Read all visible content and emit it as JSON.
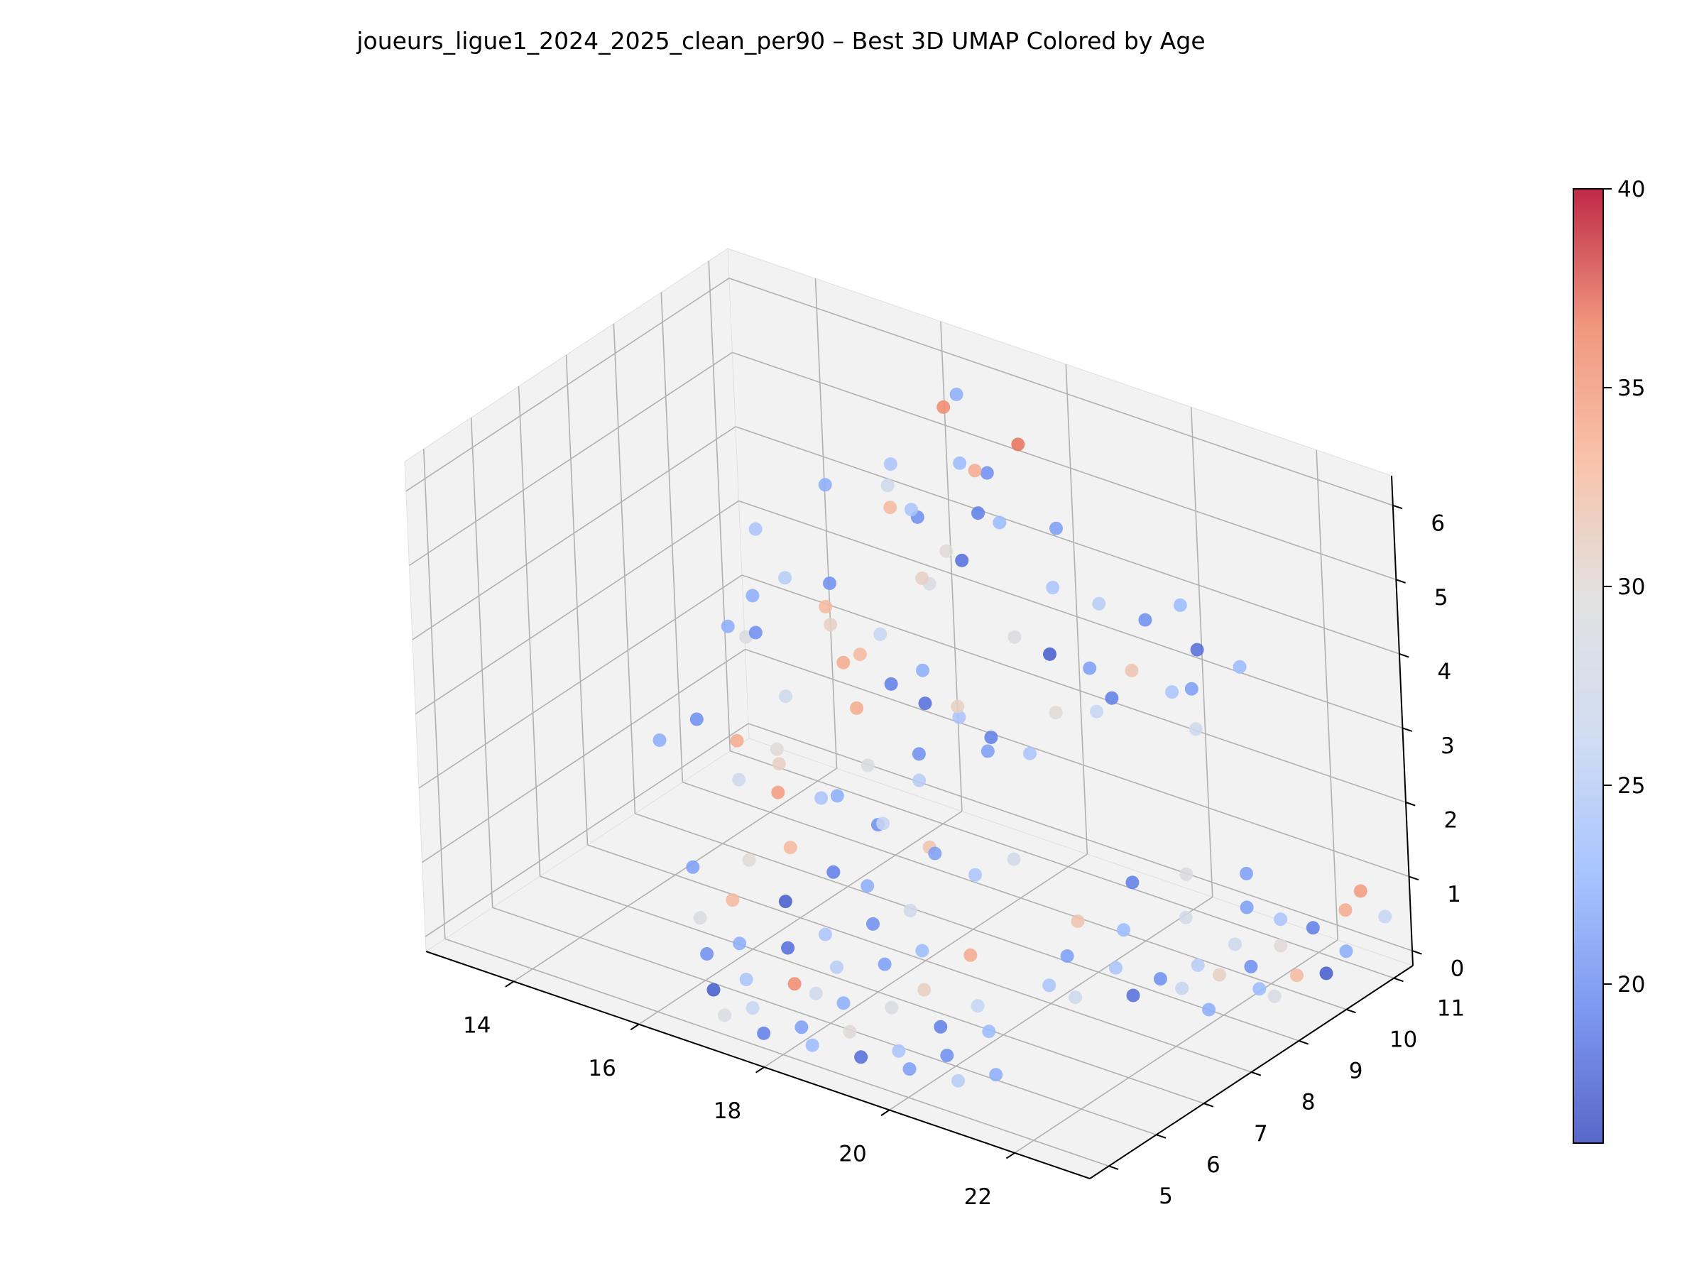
{
  "chart_data": {
    "type": "scatter3d",
    "title": "joueurs_ligue1_2024_2025_clean_per90 – Best 3D UMAP Colored by Age",
    "xlabel": "",
    "ylabel": "",
    "zlabel": "",
    "x_ticks": [
      "14",
      "16",
      "18",
      "20",
      "22"
    ],
    "y_ticks": [
      "5",
      "6",
      "7",
      "8",
      "9",
      "10",
      "11"
    ],
    "z_ticks": [
      "0",
      "1",
      "2",
      "3",
      "4",
      "5",
      "6"
    ],
    "xlim": [
      12.6,
      23.2
    ],
    "ylim": [
      4.6,
      11.4
    ],
    "zlim": [
      -0.2,
      6.4
    ],
    "grid": true,
    "colorbar": {
      "colormap": "coolwarm",
      "min": 16,
      "max": 40,
      "ticks": [
        "20",
        "25",
        "30",
        "35",
        "40"
      ],
      "colors": [
        "#3b4cc0",
        "#6788ee",
        "#9abbff",
        "#c9d7f0",
        "#dddcdc",
        "#f7b89c",
        "#ee8468",
        "#b40426"
      ]
    },
    "points": [
      [
        16.0,
        10.2,
        4.4,
        33
      ],
      [
        16.2,
        10.5,
        4.2,
        20
      ],
      [
        16.5,
        10.0,
        4.6,
        24
      ],
      [
        15.5,
        10.8,
        4.3,
        27
      ],
      [
        16.8,
        10.3,
        4.0,
        30
      ],
      [
        17.2,
        10.7,
        5.0,
        20
      ],
      [
        17.0,
        10.4,
        5.2,
        23
      ],
      [
        17.5,
        10.1,
        4.8,
        19
      ],
      [
        16.3,
        11.0,
        5.5,
        36
      ],
      [
        17.8,
        10.6,
        5.6,
        37
      ],
      [
        16.6,
        10.9,
        5.8,
        22
      ],
      [
        17.4,
        10.2,
        5.3,
        34
      ],
      [
        15.8,
        10.5,
        4.8,
        24
      ],
      [
        18.2,
        10.8,
        4.5,
        21
      ],
      [
        16.9,
        9.8,
        3.8,
        29
      ],
      [
        17.6,
        9.6,
        4.4,
        18
      ],
      [
        15.2,
        9.9,
        4.6,
        22
      ],
      [
        18.0,
        9.9,
        4.9,
        23
      ],
      [
        17.1,
        9.4,
        4.1,
        31
      ],
      [
        18.5,
        10.3,
        4.0,
        24
      ],
      [
        19.0,
        10.6,
        3.8,
        25
      ],
      [
        19.5,
        10.9,
        3.6,
        20
      ],
      [
        20.0,
        11.0,
        3.9,
        23
      ],
      [
        20.4,
        10.8,
        3.5,
        18
      ],
      [
        19.8,
        10.2,
        3.3,
        32
      ],
      [
        20.2,
        10.5,
        3.0,
        24
      ],
      [
        19.2,
        10.1,
        3.2,
        21
      ],
      [
        18.8,
        9.8,
        3.4,
        17
      ],
      [
        18.4,
        9.6,
        3.6,
        29
      ],
      [
        19.6,
        9.7,
        2.9,
        26
      ],
      [
        20.6,
        10.4,
        3.2,
        21
      ],
      [
        21.0,
        10.9,
        3.4,
        23
      ],
      [
        19.3,
        10.4,
        2.7,
        19
      ],
      [
        18.7,
        10.0,
        2.5,
        30
      ],
      [
        20.8,
        10.2,
        2.8,
        27
      ],
      [
        14.8,
        9.5,
        3.4,
        25
      ],
      [
        15.2,
        9.8,
        3.0,
        33
      ],
      [
        14.5,
        9.2,
        3.2,
        22
      ],
      [
        15.6,
        9.4,
        3.6,
        20
      ],
      [
        14.2,
        9.7,
        3.8,
        24
      ],
      [
        15.9,
        9.0,
        3.3,
        31
      ],
      [
        14.6,
        8.9,
        2.8,
        29
      ],
      [
        16.2,
        9.2,
        2.9,
        33
      ],
      [
        15.0,
        8.6,
        3.1,
        20
      ],
      [
        14.0,
        9.3,
        2.6,
        22
      ],
      [
        16.7,
        9.0,
        3.4,
        26
      ],
      [
        17.0,
        8.8,
        2.9,
        19
      ],
      [
        16.4,
        8.6,
        3.1,
        34
      ],
      [
        17.3,
        9.1,
        2.6,
        18
      ],
      [
        15.6,
        8.4,
        2.5,
        27
      ],
      [
        17.6,
        8.7,
        3.3,
        22
      ],
      [
        18.0,
        8.9,
        2.7,
        24
      ],
      [
        18.3,
        8.5,
        3.1,
        31
      ],
      [
        17.8,
        8.3,
        2.4,
        20
      ],
      [
        18.6,
        8.7,
        2.5,
        21
      ],
      [
        16.9,
        8.2,
        2.8,
        34
      ],
      [
        17.2,
        8.0,
        2.2,
        29
      ],
      [
        18.9,
        8.4,
        2.9,
        19
      ],
      [
        19.2,
        8.8,
        2.6,
        24
      ],
      [
        18.1,
        7.9,
        2.3,
        25
      ],
      [
        14.3,
        8.2,
        1.9,
        20
      ],
      [
        14.7,
        8.5,
        1.6,
        34
      ],
      [
        14.0,
        7.8,
        1.7,
        22
      ],
      [
        15.1,
        8.0,
        1.4,
        27
      ],
      [
        15.5,
        8.3,
        1.8,
        30
      ],
      [
        16.0,
        7.7,
        2.0,
        31
      ],
      [
        16.5,
        7.9,
        1.6,
        24
      ],
      [
        16.2,
        7.4,
        1.8,
        35
      ],
      [
        17.0,
        7.6,
        1.9,
        22
      ],
      [
        17.4,
        7.9,
        1.5,
        20
      ],
      [
        17.8,
        7.5,
        1.8,
        26
      ],
      [
        18.3,
        7.8,
        1.5,
        32
      ],
      [
        18.7,
        7.4,
        1.7,
        21
      ],
      [
        19.1,
        7.7,
        1.4,
        24
      ],
      [
        19.5,
        8.0,
        1.6,
        28
      ],
      [
        16.6,
        7.1,
        1.3,
        33
      ],
      [
        17.2,
        7.2,
        1.1,
        19
      ],
      [
        17.9,
        7.0,
        1.2,
        22
      ],
      [
        18.5,
        7.1,
        1.0,
        27
      ],
      [
        16.0,
        7.0,
        1.0,
        30
      ],
      [
        15.4,
        6.6,
        0.9,
        21
      ],
      [
        16.1,
        6.5,
        0.7,
        33
      ],
      [
        16.8,
        6.7,
        0.8,
        17
      ],
      [
        17.5,
        6.6,
        0.6,
        24
      ],
      [
        18.2,
        6.7,
        0.9,
        20
      ],
      [
        18.9,
        6.8,
        0.7,
        23
      ],
      [
        19.6,
        6.9,
        0.8,
        34
      ],
      [
        15.8,
        6.2,
        0.5,
        29
      ],
      [
        16.5,
        6.1,
        0.4,
        22
      ],
      [
        17.2,
        6.2,
        0.5,
        18
      ],
      [
        17.9,
        6.3,
        0.4,
        25
      ],
      [
        18.6,
        6.4,
        0.6,
        21
      ],
      [
        19.3,
        6.3,
        0.5,
        31
      ],
      [
        20.0,
        6.5,
        0.4,
        26
      ],
      [
        16.2,
        5.8,
        0.3,
        20
      ],
      [
        16.9,
        5.7,
        0.2,
        24
      ],
      [
        17.6,
        5.8,
        0.3,
        36
      ],
      [
        18.3,
        5.9,
        0.2,
        22
      ],
      [
        19.0,
        6.0,
        0.3,
        29
      ],
      [
        19.7,
        6.1,
        0.2,
        19
      ],
      [
        20.4,
        6.2,
        0.3,
        23
      ],
      [
        16.6,
        5.4,
        0.1,
        17
      ],
      [
        17.3,
        5.3,
        0.1,
        26
      ],
      [
        18.0,
        5.4,
        0.0,
        21
      ],
      [
        18.7,
        5.5,
        0.1,
        30
      ],
      [
        19.4,
        5.6,
        0.0,
        24
      ],
      [
        20.1,
        5.7,
        0.1,
        20
      ],
      [
        20.8,
        5.8,
        0.0,
        22
      ],
      [
        17.0,
        5.1,
        0.0,
        29
      ],
      [
        17.7,
        5.0,
        0.0,
        19
      ],
      [
        18.4,
        5.1,
        0.0,
        23
      ],
      [
        19.1,
        5.2,
        0.0,
        18
      ],
      [
        19.8,
        5.3,
        0.0,
        21
      ],
      [
        20.5,
        5.4,
        0.0,
        25
      ],
      [
        18.1,
        5.6,
        0.4,
        27
      ],
      [
        21.5,
        10.2,
        0.6,
        21
      ],
      [
        21.8,
        10.5,
        0.4,
        24
      ],
      [
        22.1,
        10.1,
        0.3,
        30
      ],
      [
        22.4,
        10.4,
        0.5,
        19
      ],
      [
        22.7,
        10.7,
        0.7,
        34
      ],
      [
        23.0,
        10.3,
        0.4,
        22
      ],
      [
        21.6,
        9.8,
        0.3,
        27
      ],
      [
        22.0,
        9.6,
        0.2,
        20
      ],
      [
        22.5,
        9.9,
        0.1,
        33
      ],
      [
        22.9,
        10.0,
        0.2,
        17
      ],
      [
        21.3,
        9.4,
        0.1,
        25
      ],
      [
        21.8,
        9.2,
        0.2,
        31
      ],
      [
        22.2,
        9.5,
        0.0,
        23
      ],
      [
        22.6,
        9.3,
        0.1,
        29
      ],
      [
        21.0,
        9.0,
        0.0,
        20
      ],
      [
        21.5,
        8.8,
        0.1,
        26
      ],
      [
        22.0,
        8.7,
        0.0,
        22
      ],
      [
        20.6,
        8.6,
        0.2,
        24
      ],
      [
        21.1,
        8.3,
        0.1,
        18
      ],
      [
        20.4,
        8.0,
        0.0,
        27
      ],
      [
        20.9,
        9.7,
        0.5,
        28
      ],
      [
        20.2,
        9.3,
        0.3,
        23
      ],
      [
        19.7,
        9.0,
        0.4,
        32
      ],
      [
        19.9,
        8.5,
        0.2,
        21
      ],
      [
        20.3,
        7.6,
        0.3,
        24
      ],
      [
        22.8,
        10.9,
        0.9,
        35
      ],
      [
        23.1,
        11.0,
        0.6,
        26
      ],
      [
        21.2,
        10.6,
        0.8,
        21
      ],
      [
        20.7,
        10.0,
        0.9,
        29
      ],
      [
        19.9,
        9.9,
        0.6,
        19
      ]
    ]
  }
}
